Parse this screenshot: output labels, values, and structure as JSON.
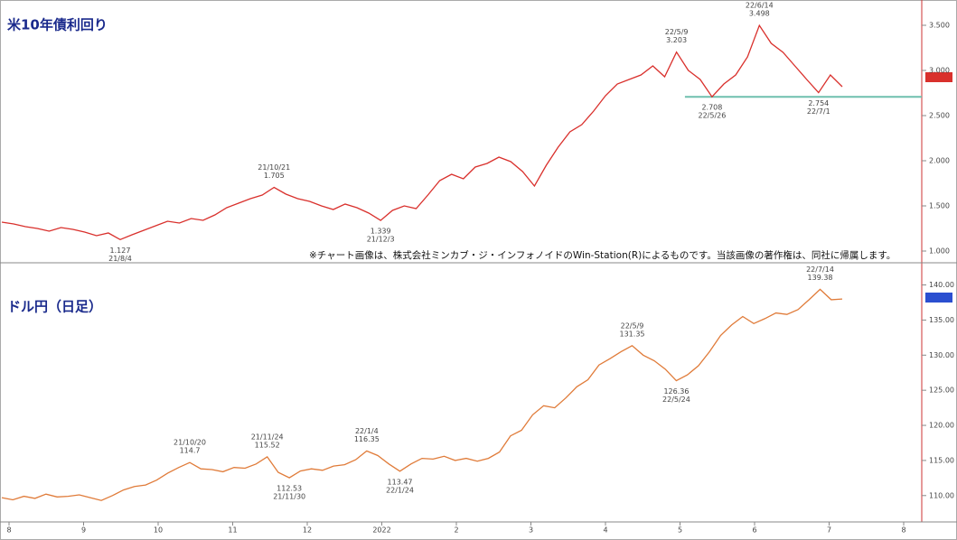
{
  "disclaimer": "※チャート画像は、株式会社ミンカブ・ジ・インフォノイドのWin-Station(R)によるものです。当該画像の著作権は、同社に帰属します。",
  "time_axis": [
    "8",
    "9",
    "10",
    "11",
    "12",
    "2022",
    "2",
    "3",
    "4",
    "5",
    "6",
    "7",
    "8"
  ],
  "chart_data": [
    {
      "type": "line",
      "title": "米10年債利回り",
      "color": "#d9302c",
      "values": [
        1.32,
        1.3,
        1.27,
        1.25,
        1.22,
        1.26,
        1.24,
        1.21,
        1.17,
        1.2,
        1.127,
        1.18,
        1.23,
        1.28,
        1.33,
        1.31,
        1.36,
        1.34,
        1.4,
        1.48,
        1.53,
        1.58,
        1.62,
        1.705,
        1.63,
        1.58,
        1.55,
        1.5,
        1.46,
        1.52,
        1.48,
        1.42,
        1.339,
        1.45,
        1.5,
        1.47,
        1.62,
        1.78,
        1.85,
        1.8,
        1.93,
        1.97,
        2.04,
        1.99,
        1.88,
        1.72,
        1.95,
        2.15,
        2.32,
        2.4,
        2.55,
        2.72,
        2.85,
        2.9,
        2.95,
        3.05,
        2.93,
        3.203,
        3.0,
        2.9,
        2.708,
        2.85,
        2.95,
        3.15,
        3.498,
        3.3,
        3.2,
        3.05,
        2.9,
        2.754,
        2.95,
        2.82
      ],
      "ylim": [
        0.9,
        3.7
      ],
      "yticks": [
        {
          "value": 1.0,
          "label": "1.000"
        },
        {
          "value": 1.5,
          "label": "1.500"
        },
        {
          "value": 2.0,
          "label": "2.000"
        },
        {
          "value": 2.5,
          "label": "2.500"
        },
        {
          "value": 3.0,
          "label": "3.000"
        },
        {
          "value": 3.5,
          "label": "3.500"
        }
      ],
      "hline": {
        "value": 2.708,
        "color": "#6fbfae"
      },
      "annotations": [
        {
          "date": "21/8/4",
          "value": 1.127
        },
        {
          "date": "21/10/21",
          "value": 1.705
        },
        {
          "date": "21/12/3",
          "value": 1.339
        },
        {
          "date": "22/5/9",
          "value": 3.203
        },
        {
          "date": "22/5/26",
          "value": 2.708
        },
        {
          "date": "22/6/14",
          "value": 3.498
        },
        {
          "date": "22/7/1",
          "value": 2.754
        }
      ]
    },
    {
      "type": "line",
      "title": "ドル円（日足）",
      "color": "#e07b39",
      "values": [
        109.7,
        109.4,
        109.9,
        109.6,
        110.2,
        109.8,
        109.9,
        110.1,
        109.7,
        109.3,
        110.0,
        110.8,
        111.3,
        111.5,
        112.2,
        113.2,
        114.0,
        114.7,
        113.8,
        113.7,
        113.4,
        114.0,
        113.9,
        114.5,
        115.52,
        113.3,
        112.53,
        113.5,
        113.8,
        113.6,
        114.2,
        114.4,
        115.1,
        116.35,
        115.7,
        114.5,
        113.47,
        114.5,
        115.3,
        115.2,
        115.6,
        115.0,
        115.3,
        114.9,
        115.3,
        116.2,
        118.5,
        119.3,
        121.5,
        122.8,
        122.5,
        123.9,
        125.5,
        126.5,
        128.6,
        129.5,
        130.5,
        131.35,
        130.0,
        129.2,
        128.0,
        126.36,
        127.2,
        128.5,
        130.5,
        132.8,
        134.3,
        135.5,
        134.5,
        135.2,
        136.0,
        135.8,
        136.5,
        137.9,
        139.38,
        137.9,
        138.0
      ],
      "ylim": [
        106.5,
        142
      ],
      "yticks": [
        {
          "value": 110,
          "label": "110.00"
        },
        {
          "value": 115,
          "label": "115.00"
        },
        {
          "value": 120,
          "label": "120.00"
        },
        {
          "value": 125,
          "label": "125.00"
        },
        {
          "value": 130,
          "label": "130.00"
        },
        {
          "value": 135,
          "label": "135.00"
        },
        {
          "value": 140,
          "label": "140.00"
        }
      ],
      "annotations": [
        {
          "date": "21/10/20",
          "value": 114.7
        },
        {
          "date": "21/11/24",
          "value": 115.52
        },
        {
          "date": "21/11/30",
          "value": 112.53
        },
        {
          "date": "22/1/4",
          "value": 116.35
        },
        {
          "date": "22/1/24",
          "value": 113.47
        },
        {
          "date": "22/5/9",
          "value": 131.35
        },
        {
          "date": "22/5/24",
          "value": 126.36
        },
        {
          "date": "22/7/14",
          "value": 139.38
        }
      ]
    }
  ]
}
